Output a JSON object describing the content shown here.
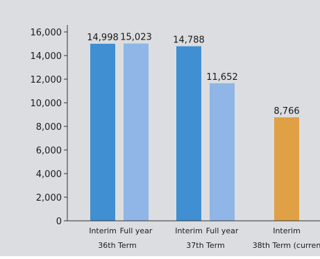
{
  "chart_data": {
    "type": "bar",
    "ylim": [
      0,
      16000
    ],
    "yticks": [
      0,
      2000,
      4000,
      6000,
      8000,
      10000,
      12000,
      14000,
      16000
    ],
    "ytick_labels": [
      "0",
      "2,000",
      "4,000",
      "6,000",
      "8,000",
      "10,000",
      "12,000",
      "14,000",
      "16,000"
    ],
    "grid": false,
    "legend": "none",
    "groups": [
      {
        "label": "36th Term",
        "bars": [
          {
            "category": "Interim",
            "value": 14998,
            "value_label": "14,998",
            "color": "#3f8fd2"
          },
          {
            "category": "Full year",
            "value": 15023,
            "value_label": "15,023",
            "color": "#8fb6e6"
          }
        ]
      },
      {
        "label": "37th Term",
        "bars": [
          {
            "category": "Interim",
            "value": 14788,
            "value_label": "14,788",
            "color": "#3f8fd2"
          },
          {
            "category": "Full year",
            "value": 11652,
            "value_label": "11,652",
            "color": "#8fb6e6"
          }
        ]
      },
      {
        "label": "38th Term (curren",
        "bars": [
          {
            "category": "Interim",
            "value": 8766,
            "value_label": "8,766",
            "color": "#e0a045"
          }
        ]
      }
    ]
  },
  "colors": {
    "background": "#dcdde0",
    "axis": "#333333",
    "text": "#1a1a1a"
  }
}
